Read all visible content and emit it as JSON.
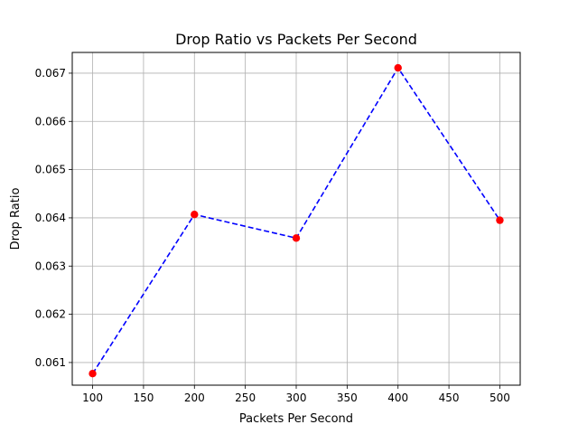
{
  "chart_data": {
    "type": "line",
    "title": "Drop Ratio vs Packets Per Second",
    "xlabel": "Packets Per Second",
    "ylabel": "Drop Ratio",
    "x": [
      100,
      200,
      300,
      400,
      500
    ],
    "series": [
      {
        "values": [
          0.06077,
          0.06407,
          0.06358,
          0.06711,
          0.06395
        ]
      }
    ],
    "xlim": [
      80,
      520
    ],
    "ylim": [
      0.06053,
      0.06743
    ],
    "xticks": [
      100,
      150,
      200,
      250,
      300,
      350,
      400,
      450,
      500
    ],
    "yticks": [
      0.061,
      0.062,
      0.063,
      0.064,
      0.065,
      0.066,
      0.067
    ],
    "ytick_labels": [
      "0.061",
      "0.062",
      "0.063",
      "0.064",
      "0.065",
      "0.066",
      "0.067"
    ],
    "grid": true,
    "line_color": "#0000ff",
    "line_style": "dashed",
    "marker_color": "#ff0000",
    "marker": "circle"
  }
}
